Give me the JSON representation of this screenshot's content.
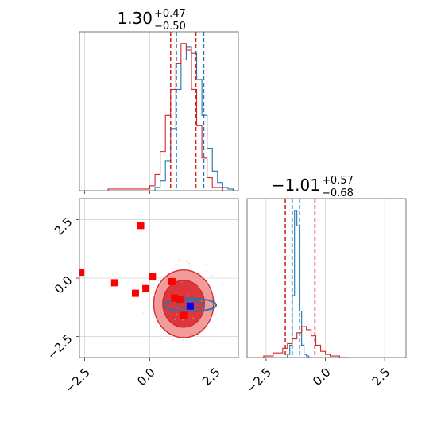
{
  "colors": {
    "blue": "#1f77b4",
    "red": "#d62728",
    "marker_red": "#ff0000",
    "marker_blue": "#0000ff",
    "fill_red_light": "#f08a8a",
    "fill_red_dark": "#d9262b",
    "grid": "#c8c8c8"
  },
  "chart_data": {
    "type": "corner",
    "grid": true,
    "panels": [
      {
        "id": "hist-p1",
        "type": "histogram",
        "title": {
          "main": "1.30",
          "sup": "+0.47",
          "sub": "−0.50"
        },
        "xlim": [
          -2.7,
          3.4
        ],
        "x_tick_labels_shown": false,
        "quantile_lines": {
          "red": [
            0.8,
            1.77
          ],
          "blue": [
            1.02,
            2.07
          ]
        },
        "series": [
          {
            "name": "",
            "color": "blue",
            "bins": [
              0.2,
              0.4,
              0.6,
              0.8,
              1.0,
              1.2,
              1.4,
              1.6,
              1.8,
              2.0,
              2.2,
              2.4,
              2.6,
              2.8,
              3.0
            ],
            "counts": [
              2,
              6,
              18,
              38,
              62,
              80,
              88,
              84,
              68,
              46,
              26,
              12,
              5,
              2,
              1
            ]
          },
          {
            "name": "",
            "color": "red",
            "bins": [
              -1.6,
              -1.2,
              -0.8,
              -0.4,
              0.0,
              0.2,
              0.4,
              0.6,
              0.8,
              1.0,
              1.2,
              1.4,
              1.6,
              1.8,
              2.0,
              2.2,
              2.4
            ],
            "counts": [
              1,
              1,
              1,
              1,
              3,
              10,
              24,
              46,
              62,
              78,
              90,
              86,
              62,
              40,
              20,
              8,
              2
            ]
          }
        ]
      },
      {
        "id": "hist-p2",
        "type": "histogram",
        "title": {
          "main": "−1.01",
          "sup": "+0.57",
          "sub": "−0.68"
        },
        "xlim": [
          -3.3,
          3.4
        ],
        "x_tick_labels": [
          "−2.5",
          "0.0",
          "2.5"
        ],
        "x_ticks": [
          -2.5,
          0.0,
          2.5
        ],
        "quantile_lines": {
          "red": [
            -1.69,
            -0.44
          ],
          "blue": [
            -1.4,
            -1.08
          ]
        },
        "series": [
          {
            "name": "",
            "color": "blue",
            "bins": [
              -1.6,
              -1.5,
              -1.4,
              -1.3,
              -1.2,
              -1.1,
              -1.0,
              -0.9,
              -0.8
            ],
            "counts": [
              2,
              8,
              40,
              95,
              85,
              30,
              8,
              2,
              1
            ]
          },
          {
            "name": "",
            "color": "red",
            "bins": [
              -2.6,
              -2.2,
              -1.8,
              -1.6,
              -1.4,
              -1.2,
              -1.0,
              -0.8,
              -0.6,
              -0.4,
              -0.2,
              0.0,
              0.2,
              0.6
            ],
            "counts": [
              1,
              3,
              6,
              9,
              12,
              16,
              20,
              18,
              14,
              8,
              4,
              2,
              1,
              0
            ]
          }
        ]
      },
      {
        "id": "scatter-p1-p2",
        "type": "2d-density",
        "xlim": [
          -2.7,
          3.4
        ],
        "ylim": [
          -3.4,
          3.4
        ],
        "x_ticks": [
          -2.5,
          0.0,
          2.5
        ],
        "x_tick_labels": [
          "−2.5",
          "0.0",
          "2.5"
        ],
        "y_ticks": [
          2.5,
          0.0,
          -2.5
        ],
        "y_tick_labels": [
          "2.5",
          "0.0",
          "−2.5"
        ],
        "red_contours": {
          "center": [
            1.3,
            -1.1
          ],
          "levels": [
            {
              "rx": 1.15,
              "ry": 1.45,
              "fill": "fill_red_light"
            },
            {
              "rx": 0.8,
              "ry": 1.0,
              "fill": "fill_red_dark"
            }
          ]
        },
        "blue_contour": {
          "center": [
            1.55,
            -1.15
          ],
          "rx": 1.0,
          "ry": 0.28
        },
        "red_points": [
          [
            -2.65,
            0.25
          ],
          [
            -1.35,
            -0.2
          ],
          [
            -0.55,
            -0.65
          ],
          [
            -0.35,
            2.25
          ],
          [
            -0.15,
            -0.45
          ],
          [
            0.1,
            0.05
          ],
          [
            0.85,
            -0.15
          ],
          [
            0.95,
            -0.85
          ],
          [
            1.15,
            -0.9
          ],
          [
            1.3,
            -1.6
          ]
        ],
        "blue_point": [
          1.55,
          -1.2
        ]
      }
    ]
  }
}
